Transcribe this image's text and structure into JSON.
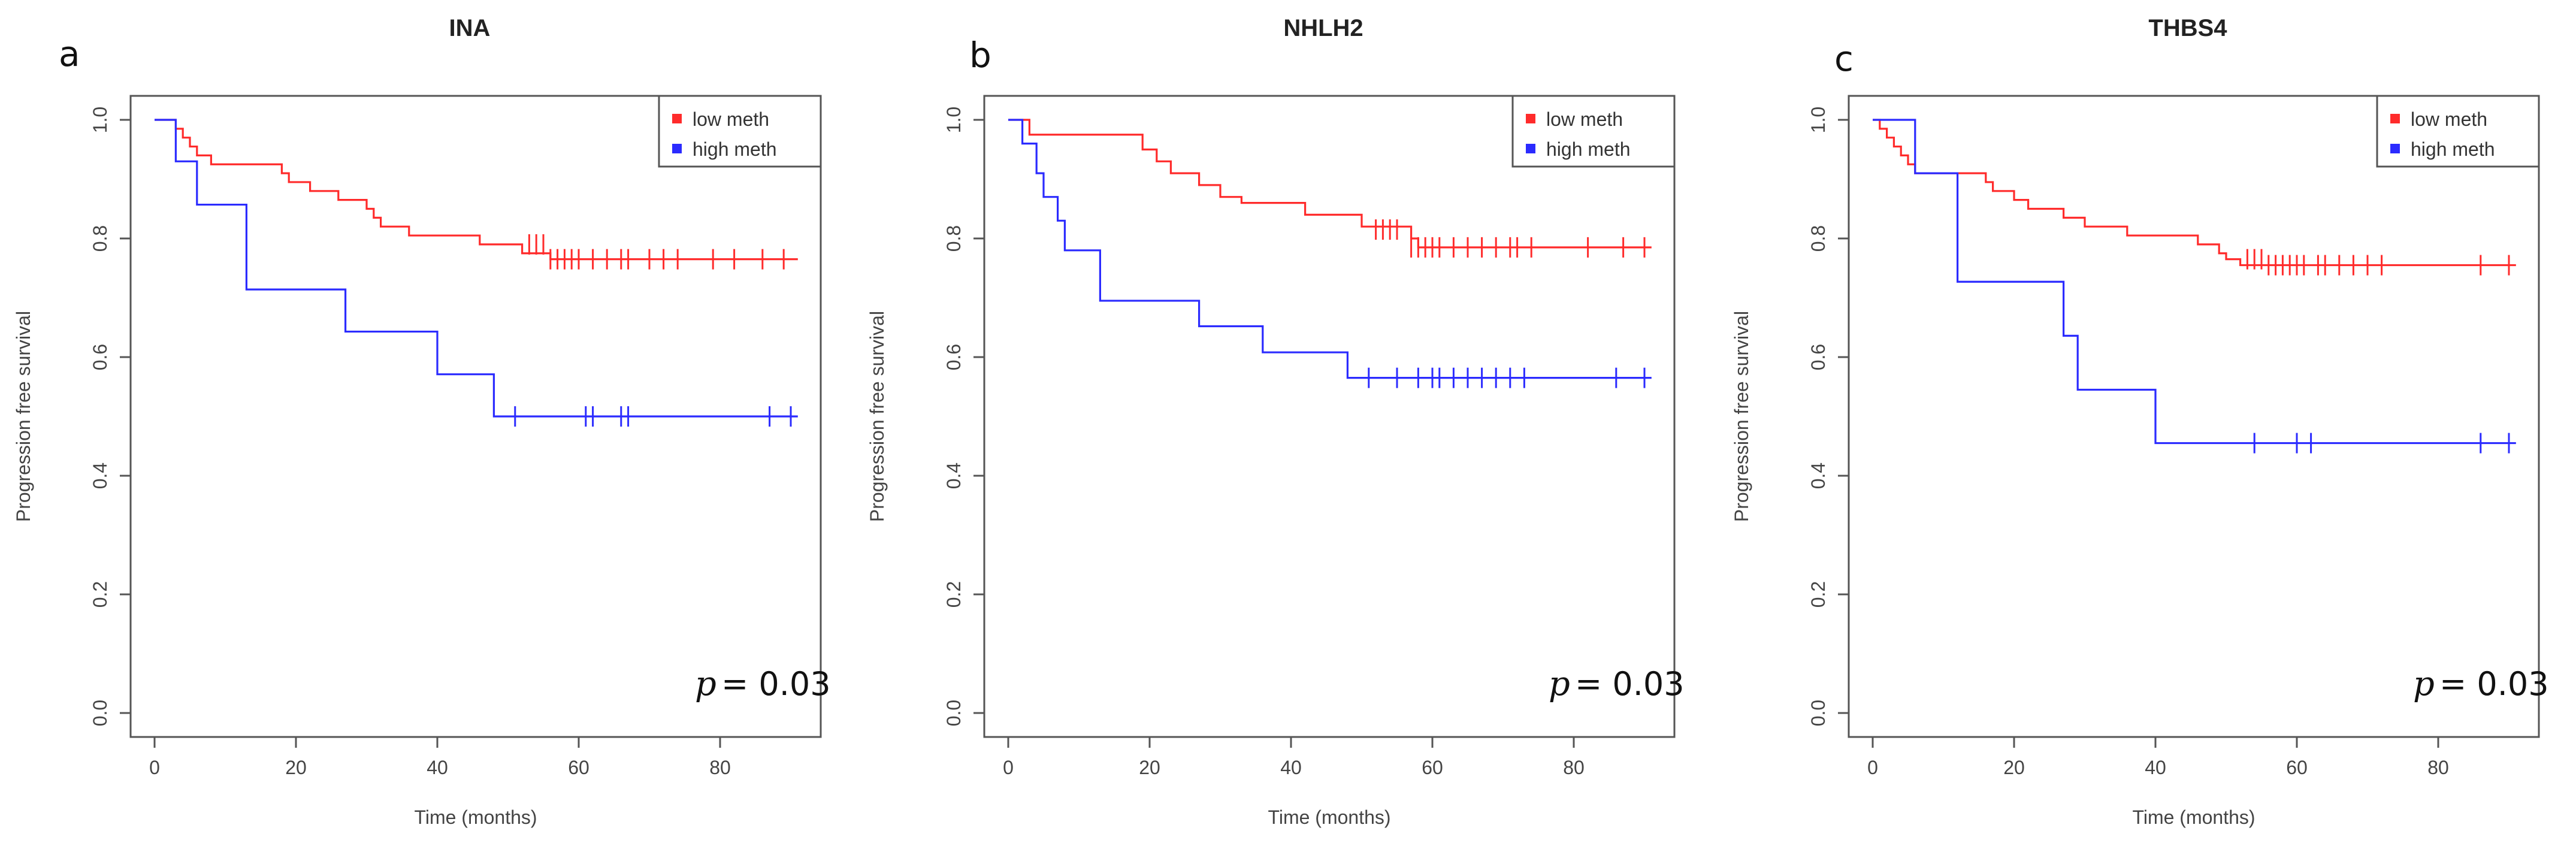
{
  "chart_data": [
    {
      "type": "line",
      "panel_label": "a",
      "title": "INA",
      "xlabel": "Time (months)",
      "ylabel": "Progression free survival",
      "xlim": [
        0,
        90
      ],
      "ylim": [
        0,
        1
      ],
      "x_ticks": [
        0,
        20,
        40,
        60,
        80
      ],
      "y_ticks": [
        "0.0",
        "0.2",
        "0.4",
        "0.6",
        "0.8",
        "1.0"
      ],
      "legend": {
        "position": "top-right"
      },
      "pvalue_prefix": "p",
      "pvalue_text": "= 0.03",
      "series": [
        {
          "name": "low meth",
          "color": "#ff2b2b",
          "steps": [
            [
              0,
              1.0
            ],
            [
              3,
              0.985
            ],
            [
              4,
              0.97
            ],
            [
              5,
              0.955
            ],
            [
              6,
              0.94
            ],
            [
              8,
              0.925
            ],
            [
              18,
              0.91
            ],
            [
              19,
              0.895
            ],
            [
              22,
              0.88
            ],
            [
              26,
              0.865
            ],
            [
              30,
              0.85
            ],
            [
              31,
              0.835
            ],
            [
              32,
              0.82
            ],
            [
              36,
              0.805
            ],
            [
              46,
              0.79
            ],
            [
              52,
              0.775
            ],
            [
              56,
              0.765
            ],
            [
              91,
              0.765
            ]
          ],
          "censored": [
            [
              53,
              0.79
            ],
            [
              54,
              0.79
            ],
            [
              55,
              0.79
            ],
            [
              56,
              0.765
            ],
            [
              57,
              0.765
            ],
            [
              58,
              0.765
            ],
            [
              59,
              0.765
            ],
            [
              60,
              0.765
            ],
            [
              62,
              0.765
            ],
            [
              64,
              0.765
            ],
            [
              66,
              0.765
            ],
            [
              67,
              0.765
            ],
            [
              70,
              0.765
            ],
            [
              72,
              0.765
            ],
            [
              74,
              0.765
            ],
            [
              79,
              0.765
            ],
            [
              82,
              0.765
            ],
            [
              86,
              0.765
            ],
            [
              89,
              0.765
            ]
          ]
        },
        {
          "name": "high meth",
          "color": "#2b2bff",
          "steps": [
            [
              0,
              1.0
            ],
            [
              3,
              0.93
            ],
            [
              6,
              0.857
            ],
            [
              13,
              0.714
            ],
            [
              27,
              0.643
            ],
            [
              40,
              0.571
            ],
            [
              48,
              0.5
            ],
            [
              91,
              0.5
            ]
          ],
          "censored": [
            [
              51,
              0.5
            ],
            [
              61,
              0.5
            ],
            [
              62,
              0.5
            ],
            [
              66,
              0.5
            ],
            [
              67,
              0.5
            ],
            [
              87,
              0.5
            ],
            [
              90,
              0.5
            ]
          ]
        }
      ]
    },
    {
      "type": "line",
      "panel_label": "b",
      "title": "NHLH2",
      "xlabel": "Time (months)",
      "ylabel": "Progression free survival",
      "xlim": [
        0,
        90
      ],
      "ylim": [
        0,
        1
      ],
      "x_ticks": [
        0,
        20,
        40,
        60,
        80
      ],
      "y_ticks": [
        "0.0",
        "0.2",
        "0.4",
        "0.6",
        "0.8",
        "1.0"
      ],
      "legend": {
        "position": "top-right"
      },
      "pvalue_prefix": "p",
      "pvalue_text": "= 0.03",
      "series": [
        {
          "name": "low meth",
          "color": "#ff2b2b",
          "steps": [
            [
              0,
              1.0
            ],
            [
              3,
              0.975
            ],
            [
              19,
              0.95
            ],
            [
              21,
              0.93
            ],
            [
              23,
              0.91
            ],
            [
              27,
              0.89
            ],
            [
              30,
              0.87
            ],
            [
              33,
              0.86
            ],
            [
              42,
              0.84
            ],
            [
              50,
              0.82
            ],
            [
              57,
              0.8
            ],
            [
              58,
              0.785
            ],
            [
              91,
              0.785
            ]
          ],
          "censored": [
            [
              52,
              0.815
            ],
            [
              53,
              0.815
            ],
            [
              54,
              0.815
            ],
            [
              55,
              0.815
            ],
            [
              57,
              0.785
            ],
            [
              58,
              0.785
            ],
            [
              59,
              0.785
            ],
            [
              60,
              0.785
            ],
            [
              61,
              0.785
            ],
            [
              63,
              0.785
            ],
            [
              65,
              0.785
            ],
            [
              67,
              0.785
            ],
            [
              69,
              0.785
            ],
            [
              71,
              0.785
            ],
            [
              72,
              0.785
            ],
            [
              74,
              0.785
            ],
            [
              82,
              0.785
            ],
            [
              87,
              0.785
            ],
            [
              90,
              0.785
            ]
          ]
        },
        {
          "name": "high meth",
          "color": "#2b2bff",
          "steps": [
            [
              0,
              1.0
            ],
            [
              2,
              0.96
            ],
            [
              4,
              0.91
            ],
            [
              5,
              0.87
            ],
            [
              7,
              0.83
            ],
            [
              8,
              0.78
            ],
            [
              13,
              0.695
            ],
            [
              27,
              0.652
            ],
            [
              36,
              0.608
            ],
            [
              48,
              0.565
            ],
            [
              91,
              0.565
            ]
          ],
          "censored": [
            [
              51,
              0.565
            ],
            [
              55,
              0.565
            ],
            [
              58,
              0.565
            ],
            [
              60,
              0.565
            ],
            [
              61,
              0.565
            ],
            [
              63,
              0.565
            ],
            [
              65,
              0.565
            ],
            [
              67,
              0.565
            ],
            [
              69,
              0.565
            ],
            [
              71,
              0.565
            ],
            [
              73,
              0.565
            ],
            [
              86,
              0.565
            ],
            [
              90,
              0.565
            ]
          ]
        }
      ]
    },
    {
      "type": "line",
      "panel_label": "c",
      "title": "THBS4",
      "xlabel": "Time (months)",
      "ylabel": "Progression free survival",
      "xlim": [
        0,
        90
      ],
      "ylim": [
        0,
        1
      ],
      "x_ticks": [
        0,
        20,
        40,
        60,
        80
      ],
      "y_ticks": [
        "0.0",
        "0.2",
        "0.4",
        "0.6",
        "0.8",
        "1.0"
      ],
      "legend": {
        "position": "top-right"
      },
      "pvalue_prefix": "p",
      "pvalue_text": "= 0.03",
      "series": [
        {
          "name": "low meth",
          "color": "#ff2b2b",
          "steps": [
            [
              0,
              1.0
            ],
            [
              1,
              0.985
            ],
            [
              2,
              0.97
            ],
            [
              3,
              0.955
            ],
            [
              4,
              0.94
            ],
            [
              5,
              0.925
            ],
            [
              6,
              0.91
            ],
            [
              16,
              0.895
            ],
            [
              17,
              0.88
            ],
            [
              20,
              0.865
            ],
            [
              22,
              0.85
            ],
            [
              27,
              0.835
            ],
            [
              30,
              0.82
            ],
            [
              36,
              0.805
            ],
            [
              46,
              0.79
            ],
            [
              49,
              0.775
            ],
            [
              50,
              0.765
            ],
            [
              52,
              0.755
            ],
            [
              91,
              0.755
            ]
          ],
          "censored": [
            [
              53,
              0.765
            ],
            [
              54,
              0.765
            ],
            [
              55,
              0.765
            ],
            [
              56,
              0.755
            ],
            [
              57,
              0.755
            ],
            [
              58,
              0.755
            ],
            [
              59,
              0.755
            ],
            [
              60,
              0.755
            ],
            [
              61,
              0.755
            ],
            [
              63,
              0.755
            ],
            [
              64,
              0.755
            ],
            [
              66,
              0.755
            ],
            [
              68,
              0.755
            ],
            [
              70,
              0.755
            ],
            [
              72,
              0.755
            ],
            [
              86,
              0.755
            ],
            [
              90,
              0.755
            ]
          ]
        },
        {
          "name": "high meth",
          "color": "#2b2bff",
          "steps": [
            [
              0,
              1.0
            ],
            [
              6,
              0.91
            ],
            [
              12,
              0.727
            ],
            [
              27,
              0.636
            ],
            [
              29,
              0.545
            ],
            [
              40,
              0.455
            ],
            [
              91,
              0.455
            ]
          ],
          "censored": [
            [
              54,
              0.455
            ],
            [
              60,
              0.455
            ],
            [
              62,
              0.455
            ],
            [
              86,
              0.455
            ],
            [
              90,
              0.455
            ]
          ]
        }
      ]
    }
  ]
}
